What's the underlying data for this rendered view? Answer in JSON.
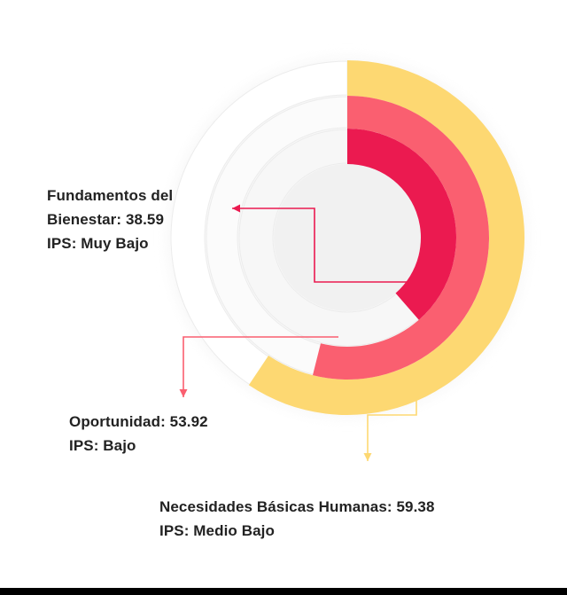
{
  "chart_data": {
    "type": "radial-bar",
    "max_value": 100,
    "series": [
      {
        "name": "Necesidades Básicas Humanas",
        "value": 59.38,
        "category": "Medio Bajo",
        "color": "#FDD872",
        "line1": "Necesidades Básicas Humanas: 59.38",
        "line2": "IPS: Medio Bajo"
      },
      {
        "name": "Oportunidad",
        "value": 53.92,
        "category": "Bajo",
        "color": "#FA5F70",
        "line1": "Oportunidad: 53.92",
        "line2": "IPS: Bajo"
      },
      {
        "name": "Fundamentos del Bienestar",
        "value": 38.59,
        "category": "Muy Bajo",
        "color": "#EB1A50",
        "line1": "Fundamentos del",
        "line2": "Bienestar: 38.59",
        "line3": "IPS: Muy Bajo"
      }
    ]
  }
}
